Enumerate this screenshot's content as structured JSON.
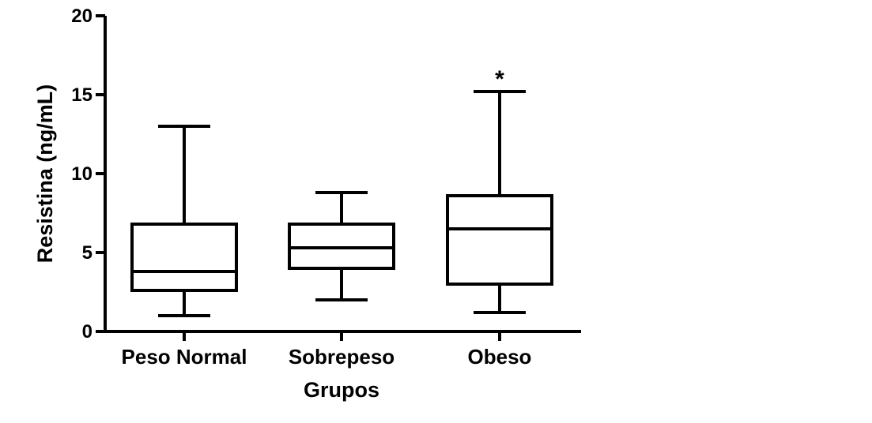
{
  "chart_data": {
    "type": "box",
    "xlabel": "Grupos",
    "ylabel": "Resistina (ng/mL)",
    "ylim": [
      0,
      20
    ],
    "yticks": [
      0,
      5,
      10,
      15,
      20
    ],
    "grid": false,
    "colors": {
      "stroke": "#000000",
      "fill": "#ffffff"
    },
    "categories": [
      "Peso Normal",
      "Sobrepeso",
      "Obeso"
    ],
    "boxes": [
      {
        "category": "Peso Normal",
        "min": 1.0,
        "q1": 2.6,
        "median": 3.8,
        "q3": 6.8,
        "max": 13.0,
        "annotation": ""
      },
      {
        "category": "Sobrepeso",
        "min": 2.0,
        "q1": 4.0,
        "median": 5.3,
        "q3": 6.8,
        "max": 8.8,
        "annotation": ""
      },
      {
        "category": "Obeso",
        "min": 1.2,
        "q1": 3.0,
        "median": 6.5,
        "q3": 8.6,
        "max": 15.2,
        "annotation": "*"
      }
    ]
  }
}
